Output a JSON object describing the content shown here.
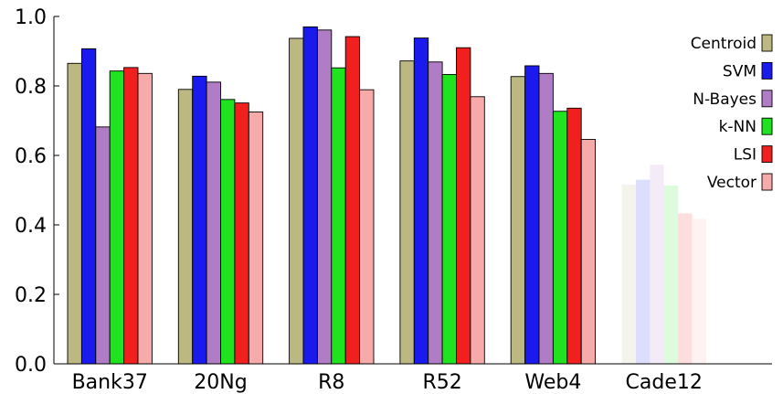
{
  "chart_data": {
    "type": "bar",
    "categories": [
      "Bank37",
      "20Ng",
      "R8",
      "R52",
      "Web4",
      "Cade12"
    ],
    "faded_categories": [
      "Cade12"
    ],
    "ylim": [
      0,
      1.0
    ],
    "yticks": [
      "0.0",
      "0.2",
      "0.4",
      "0.6",
      "0.8",
      "1.0"
    ],
    "grid": false,
    "legend_position": "top-right",
    "series": [
      {
        "name": "Centroid",
        "color": "#bcb882",
        "values": [
          0.865,
          0.79,
          0.937,
          0.872,
          0.827,
          0.516
        ]
      },
      {
        "name": "SVM",
        "color": "#1a1aee",
        "values": [
          0.907,
          0.828,
          0.97,
          0.938,
          0.858,
          0.53
        ]
      },
      {
        "name": "N-Bayes",
        "color": "#b07cc6",
        "values": [
          0.682,
          0.811,
          0.961,
          0.869,
          0.836,
          0.573
        ]
      },
      {
        "name": "k-NN",
        "color": "#1ee31e",
        "values": [
          0.843,
          0.761,
          0.852,
          0.833,
          0.727,
          0.513
        ]
      },
      {
        "name": "LSI",
        "color": "#f21f1f",
        "values": [
          0.853,
          0.751,
          0.942,
          0.91,
          0.736,
          0.433
        ]
      },
      {
        "name": "Vector",
        "color": "#f7aaaa",
        "values": [
          0.836,
          0.725,
          0.789,
          0.769,
          0.646,
          0.417
        ]
      }
    ]
  }
}
